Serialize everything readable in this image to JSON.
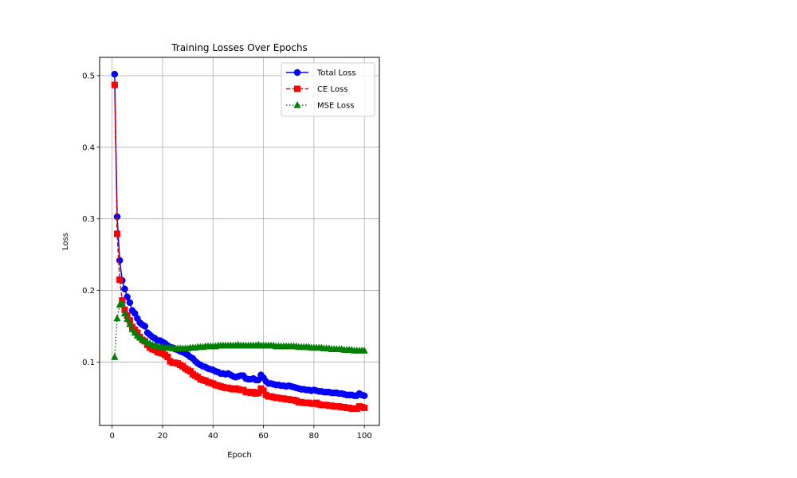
{
  "chart_data": {
    "type": "line",
    "title": "Training Losses Over Epochs",
    "xlabel": "Epoch",
    "ylabel": "Loss",
    "xlim": [
      -4.95,
      105.95
    ],
    "ylim": [
      0.0115,
      0.5255
    ],
    "xticks": [
      0,
      20,
      40,
      60,
      80,
      100
    ],
    "yticks": [
      0.1,
      0.2,
      0.3,
      0.4,
      0.5
    ],
    "ytick_labels": [
      "0.1",
      "0.2",
      "0.3",
      "0.4",
      "0.5"
    ],
    "grid": true,
    "legend_position": "upper right",
    "series": [
      {
        "name": "Total Loss",
        "color": "#0000ff",
        "linestyle": "solid",
        "marker": "circle",
        "x": [
          1,
          2,
          3,
          4,
          5,
          6,
          7,
          8,
          9,
          10,
          11,
          12,
          13,
          14,
          15,
          16,
          17,
          18,
          19,
          20,
          21,
          22,
          23,
          24,
          25,
          26,
          27,
          28,
          29,
          30,
          31,
          32,
          33,
          34,
          35,
          36,
          37,
          38,
          39,
          40,
          41,
          42,
          43,
          44,
          45,
          46,
          47,
          48,
          49,
          50,
          51,
          52,
          53,
          54,
          55,
          56,
          57,
          58,
          59,
          60,
          61,
          62,
          63,
          64,
          65,
          66,
          67,
          68,
          69,
          70,
          71,
          72,
          73,
          74,
          75,
          76,
          77,
          78,
          79,
          80,
          81,
          82,
          83,
          84,
          85,
          86,
          87,
          88,
          89,
          90,
          91,
          92,
          93,
          94,
          95,
          96,
          97,
          98,
          99,
          100
        ],
        "y": [
          0.502,
          0.303,
          0.242,
          0.214,
          0.202,
          0.191,
          0.183,
          0.172,
          0.168,
          0.161,
          0.155,
          0.152,
          0.15,
          0.141,
          0.138,
          0.135,
          0.133,
          0.13,
          0.13,
          0.128,
          0.126,
          0.123,
          0.121,
          0.12,
          0.118,
          0.117,
          0.115,
          0.114,
          0.112,
          0.11,
          0.107,
          0.105,
          0.101,
          0.098,
          0.096,
          0.094,
          0.093,
          0.091,
          0.09,
          0.089,
          0.087,
          0.086,
          0.084,
          0.084,
          0.083,
          0.084,
          0.082,
          0.08,
          0.079,
          0.08,
          0.081,
          0.081,
          0.077,
          0.076,
          0.076,
          0.077,
          0.075,
          0.075,
          0.082,
          0.078,
          0.073,
          0.07,
          0.07,
          0.069,
          0.068,
          0.068,
          0.067,
          0.067,
          0.066,
          0.067,
          0.066,
          0.065,
          0.064,
          0.063,
          0.062,
          0.062,
          0.061,
          0.061,
          0.06,
          0.061,
          0.06,
          0.059,
          0.059,
          0.058,
          0.058,
          0.058,
          0.057,
          0.057,
          0.057,
          0.056,
          0.056,
          0.055,
          0.054,
          0.054,
          0.054,
          0.053,
          0.053,
          0.056,
          0.054,
          0.053
        ]
      },
      {
        "name": "CE Loss",
        "color": "#ff0000",
        "linestyle": "dashed",
        "marker": "square",
        "x": [
          1,
          2,
          3,
          4,
          5,
          6,
          7,
          8,
          9,
          10,
          11,
          12,
          13,
          14,
          15,
          16,
          17,
          18,
          19,
          20,
          21,
          22,
          23,
          24,
          25,
          26,
          27,
          28,
          29,
          30,
          31,
          32,
          33,
          34,
          35,
          36,
          37,
          38,
          39,
          40,
          41,
          42,
          43,
          44,
          45,
          46,
          47,
          48,
          49,
          50,
          51,
          52,
          53,
          54,
          55,
          56,
          57,
          58,
          59,
          60,
          61,
          62,
          63,
          64,
          65,
          66,
          67,
          68,
          69,
          70,
          71,
          72,
          73,
          74,
          75,
          76,
          77,
          78,
          79,
          80,
          81,
          82,
          83,
          84,
          85,
          86,
          87,
          88,
          89,
          90,
          91,
          92,
          93,
          94,
          95,
          96,
          97,
          98,
          99,
          100
        ],
        "y": [
          0.487,
          0.279,
          0.215,
          0.186,
          0.173,
          0.165,
          0.158,
          0.149,
          0.145,
          0.141,
          0.135,
          0.131,
          0.129,
          0.124,
          0.12,
          0.118,
          0.117,
          0.114,
          0.113,
          0.112,
          0.11,
          0.107,
          0.101,
          0.099,
          0.099,
          0.098,
          0.096,
          0.094,
          0.091,
          0.089,
          0.087,
          0.083,
          0.081,
          0.079,
          0.076,
          0.075,
          0.074,
          0.072,
          0.071,
          0.07,
          0.068,
          0.067,
          0.066,
          0.065,
          0.064,
          0.064,
          0.063,
          0.062,
          0.063,
          0.062,
          0.061,
          0.061,
          0.058,
          0.058,
          0.057,
          0.058,
          0.056,
          0.057,
          0.063,
          0.06,
          0.054,
          0.052,
          0.052,
          0.051,
          0.05,
          0.05,
          0.049,
          0.049,
          0.048,
          0.048,
          0.047,
          0.047,
          0.046,
          0.044,
          0.044,
          0.043,
          0.043,
          0.043,
          0.042,
          0.042,
          0.043,
          0.041,
          0.04,
          0.04,
          0.04,
          0.039,
          0.039,
          0.038,
          0.038,
          0.038,
          0.037,
          0.037,
          0.036,
          0.036,
          0.035,
          0.035,
          0.035,
          0.038,
          0.037,
          0.036
        ]
      },
      {
        "name": "MSE Loss",
        "color": "#008000",
        "linestyle": "dotted",
        "marker": "triangle",
        "x": [
          1,
          2,
          3,
          4,
          5,
          6,
          7,
          8,
          9,
          10,
          11,
          12,
          13,
          14,
          15,
          16,
          17,
          18,
          19,
          20,
          21,
          22,
          23,
          24,
          25,
          26,
          27,
          28,
          29,
          30,
          31,
          32,
          33,
          34,
          35,
          36,
          37,
          38,
          39,
          40,
          41,
          42,
          43,
          44,
          45,
          46,
          47,
          48,
          49,
          50,
          51,
          52,
          53,
          54,
          55,
          56,
          57,
          58,
          59,
          60,
          61,
          62,
          63,
          64,
          65,
          66,
          67,
          68,
          69,
          70,
          71,
          72,
          73,
          74,
          75,
          76,
          77,
          78,
          79,
          80,
          81,
          82,
          83,
          84,
          85,
          86,
          87,
          88,
          89,
          90,
          91,
          92,
          93,
          94,
          95,
          96,
          97,
          98,
          99,
          100
        ],
        "y": [
          0.107,
          0.161,
          0.18,
          0.182,
          0.168,
          0.16,
          0.153,
          0.146,
          0.141,
          0.137,
          0.134,
          0.131,
          0.129,
          0.127,
          0.126,
          0.124,
          0.123,
          0.122,
          0.121,
          0.121,
          0.12,
          0.12,
          0.12,
          0.119,
          0.119,
          0.119,
          0.119,
          0.119,
          0.119,
          0.119,
          0.12,
          0.12,
          0.12,
          0.121,
          0.121,
          0.121,
          0.122,
          0.122,
          0.122,
          0.122,
          0.122,
          0.123,
          0.123,
          0.123,
          0.123,
          0.123,
          0.123,
          0.123,
          0.123,
          0.124,
          0.123,
          0.123,
          0.123,
          0.123,
          0.123,
          0.123,
          0.123,
          0.124,
          0.123,
          0.123,
          0.123,
          0.123,
          0.123,
          0.123,
          0.122,
          0.122,
          0.122,
          0.122,
          0.122,
          0.122,
          0.122,
          0.122,
          0.122,
          0.121,
          0.121,
          0.121,
          0.121,
          0.121,
          0.12,
          0.12,
          0.12,
          0.12,
          0.12,
          0.119,
          0.119,
          0.119,
          0.118,
          0.118,
          0.118,
          0.118,
          0.118,
          0.117,
          0.117,
          0.117,
          0.117,
          0.116,
          0.116,
          0.116,
          0.116,
          0.116
        ]
      }
    ]
  }
}
